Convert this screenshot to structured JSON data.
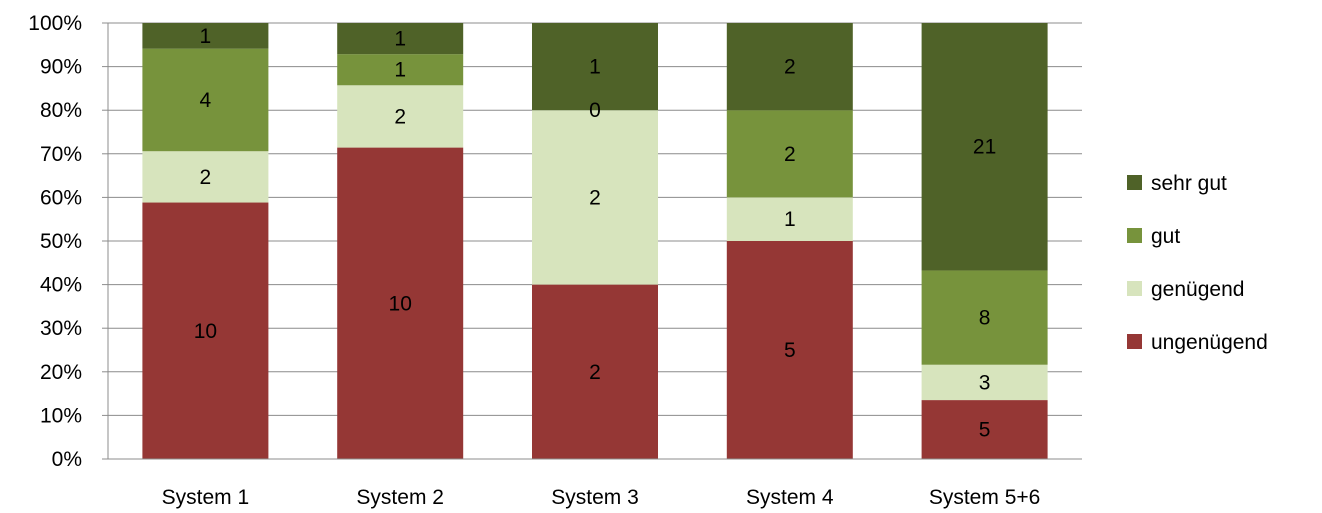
{
  "chart_data": {
    "type": "bar",
    "stacked": "percent",
    "categories": [
      "System 1",
      "System 2",
      "System 3",
      "System 4",
      "System 5+6"
    ],
    "series": [
      {
        "name": "ungenügend",
        "values": [
          10,
          10,
          2,
          5,
          5
        ],
        "labels": [
          "10",
          "10",
          "2",
          "5",
          "5"
        ],
        "color": "#953735"
      },
      {
        "name": "genügend",
        "values": [
          2,
          2,
          2,
          1,
          3
        ],
        "labels": [
          "2",
          "2",
          "2",
          "1",
          "3"
        ],
        "color": "#d7e4bd"
      },
      {
        "name": "gut",
        "values": [
          4,
          1,
          0,
          2,
          8
        ],
        "labels": [
          "4",
          "1",
          "0",
          "2",
          "8"
        ],
        "color": "#77933c"
      },
      {
        "name": "sehr gut",
        "values": [
          1,
          1,
          1,
          2,
          21
        ],
        "labels": [
          "1",
          "1",
          "1",
          "2",
          "21"
        ],
        "color": "#4f6228"
      }
    ],
    "ylim": [
      0,
      100
    ],
    "yticks": [
      "0%",
      "10%",
      "20%",
      "30%",
      "40%",
      "50%",
      "60%",
      "70%",
      "80%",
      "90%",
      "100%"
    ],
    "grid": true,
    "legend": "right",
    "legend_order": [
      "sehr gut",
      "gut",
      "genügend",
      "ungenügend"
    ],
    "title": "",
    "xlabel": "",
    "ylabel": ""
  }
}
